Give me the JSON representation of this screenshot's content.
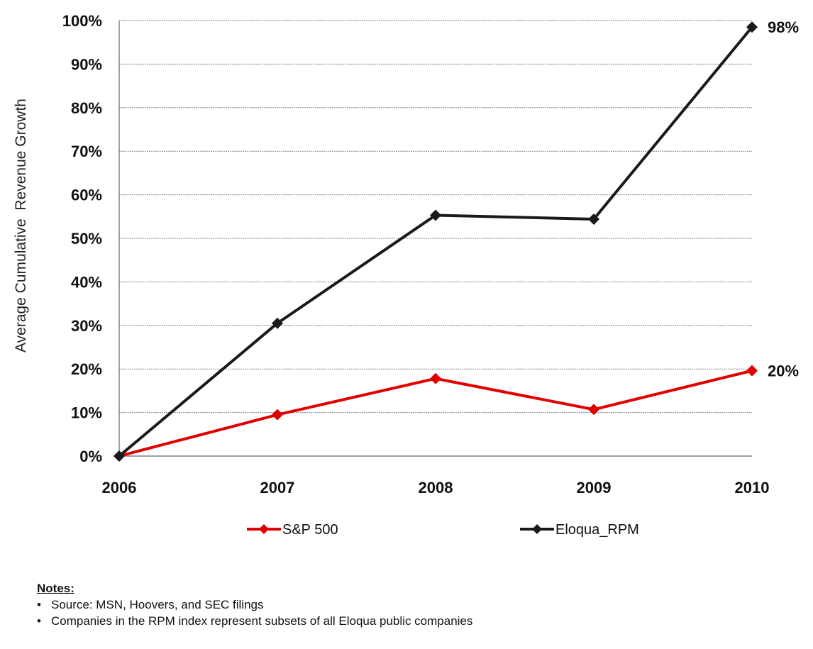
{
  "chart_data": {
    "type": "line",
    "categories": [
      "2006",
      "2007",
      "2008",
      "2009",
      "2010"
    ],
    "series": [
      {
        "name": "S&P 500",
        "values": [
          0,
          9.5,
          17.8,
          10.7,
          19.6
        ],
        "color": "#e00000",
        "end_label": "20%"
      },
      {
        "name": "Eloqua_RPM",
        "values": [
          0,
          30.5,
          55.3,
          54.4,
          98.5
        ],
        "color": "#1a1a1a",
        "end_label": "98%"
      }
    ],
    "title": "",
    "xlabel": "",
    "ylabel": "Average Cumulative  Revenue Growth",
    "ylim": [
      0,
      100
    ],
    "y_ticks": [
      "0%",
      "10%",
      "20%",
      "30%",
      "40%",
      "50%",
      "60%",
      "70%",
      "80%",
      "90%",
      "100%"
    ],
    "grid": true,
    "legend_position": "bottom"
  },
  "notes": {
    "title": "Notes:",
    "items": [
      "Source: MSN, Hoovers, and SEC filings",
      "Companies in the RPM index represent subsets of all Eloqua public companies"
    ]
  }
}
